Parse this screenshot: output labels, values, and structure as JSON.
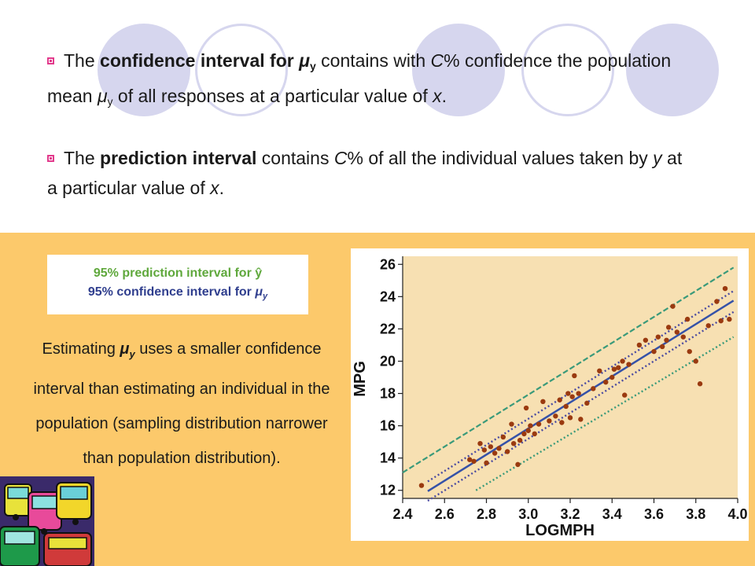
{
  "bullets": [
    {
      "pre": "The ",
      "bold": "confidence interval for ",
      "bold_italic": "μ",
      "bold_sub": "y",
      "mid": " contains with ",
      "italic1": "C",
      "rest1": "% confidence the population mean ",
      "italic2": "μ",
      "sub2": "y",
      "rest2": " of all responses at a particular value of ",
      "italic3": "x",
      "end": "."
    },
    {
      "pre": "The ",
      "bold": "prediction interval",
      "mid": " contains ",
      "italic1": "C",
      "rest1": "% of all the individual values taken by ",
      "italic2": "y",
      "rest2": " at a particular value of ",
      "italic3": "x",
      "end": "."
    }
  ],
  "legend": {
    "prediction": "95% prediction interval for ŷ",
    "confidence_pre": "95% confidence interval for ",
    "confidence_mu": "μ",
    "confidence_sub": "y"
  },
  "explanation": {
    "pre": "Estimating ",
    "mu": "μ",
    "sub": "y",
    "post": " uses a smaller confidence interval than estimating an individual in the population (sampling distribution narrower than population distribution)."
  },
  "colors": {
    "prediction": "#3a9a7a",
    "confidence": "#4a4aa0",
    "fit": "#3552a8",
    "points": "#9a3a10",
    "plot_bg": "#f7e0b2",
    "bullet": "#e23a8c"
  },
  "chart_data": {
    "type": "scatter",
    "xlabel": "LOGMPH",
    "ylabel": "MPG",
    "xlim": [
      2.4,
      4.0
    ],
    "ylim": [
      11.5,
      26.5
    ],
    "x_ticks": [
      "2.4",
      "2.6",
      "2.8",
      "3.0",
      "3.2",
      "3.4",
      "3.6",
      "3.8",
      "4.0"
    ],
    "y_ticks": [
      "12",
      "14",
      "16",
      "18",
      "20",
      "22",
      "24",
      "26"
    ],
    "fit_line": {
      "x": [
        2.52,
        3.98
      ],
      "y": [
        11.95,
        23.75
      ]
    },
    "confidence_upper": {
      "x": [
        2.52,
        3.98
      ],
      "y": [
        12.55,
        24.35
      ]
    },
    "confidence_lower": {
      "x": [
        2.52,
        3.98
      ],
      "y": [
        11.35,
        23.05
      ]
    },
    "prediction_upper": {
      "x": [
        2.4,
        3.98
      ],
      "y": [
        13.1,
        25.8
      ]
    },
    "prediction_lower": {
      "x": [
        2.75,
        3.98
      ],
      "y": [
        12.0,
        21.5
      ]
    },
    "points": [
      [
        2.49,
        12.3
      ],
      [
        2.72,
        13.9
      ],
      [
        2.74,
        13.8
      ],
      [
        2.77,
        14.9
      ],
      [
        2.79,
        14.5
      ],
      [
        2.8,
        13.7
      ],
      [
        2.82,
        14.7
      ],
      [
        2.84,
        14.3
      ],
      [
        2.86,
        14.6
      ],
      [
        2.88,
        15.3
      ],
      [
        2.9,
        14.4
      ],
      [
        2.92,
        16.1
      ],
      [
        2.93,
        14.9
      ],
      [
        2.95,
        13.6
      ],
      [
        2.96,
        15.1
      ],
      [
        2.98,
        15.5
      ],
      [
        2.99,
        17.1
      ],
      [
        3.0,
        15.7
      ],
      [
        3.01,
        16.0
      ],
      [
        3.03,
        15.5
      ],
      [
        3.05,
        16.1
      ],
      [
        3.07,
        17.5
      ],
      [
        3.1,
        16.3
      ],
      [
        3.13,
        16.6
      ],
      [
        3.15,
        17.6
      ],
      [
        3.16,
        16.2
      ],
      [
        3.18,
        17.2
      ],
      [
        3.19,
        18.0
      ],
      [
        3.2,
        16.5
      ],
      [
        3.21,
        17.8
      ],
      [
        3.22,
        19.1
      ],
      [
        3.24,
        18.0
      ],
      [
        3.25,
        16.4
      ],
      [
        3.28,
        17.4
      ],
      [
        3.31,
        18.3
      ],
      [
        3.34,
        19.4
      ],
      [
        3.37,
        18.7
      ],
      [
        3.4,
        19.0
      ],
      [
        3.41,
        19.5
      ],
      [
        3.43,
        19.6
      ],
      [
        3.45,
        20.0
      ],
      [
        3.46,
        17.9
      ],
      [
        3.48,
        19.8
      ],
      [
        3.53,
        21.0
      ],
      [
        3.56,
        21.3
      ],
      [
        3.6,
        20.6
      ],
      [
        3.62,
        21.5
      ],
      [
        3.64,
        20.9
      ],
      [
        3.66,
        21.3
      ],
      [
        3.67,
        22.1
      ],
      [
        3.69,
        23.4
      ],
      [
        3.71,
        21.8
      ],
      [
        3.74,
        21.5
      ],
      [
        3.76,
        22.6
      ],
      [
        3.77,
        20.6
      ],
      [
        3.8,
        20.0
      ],
      [
        3.82,
        18.6
      ],
      [
        3.86,
        22.2
      ],
      [
        3.9,
        23.7
      ],
      [
        3.92,
        22.5
      ],
      [
        3.94,
        24.5
      ],
      [
        3.96,
        22.6
      ]
    ]
  }
}
